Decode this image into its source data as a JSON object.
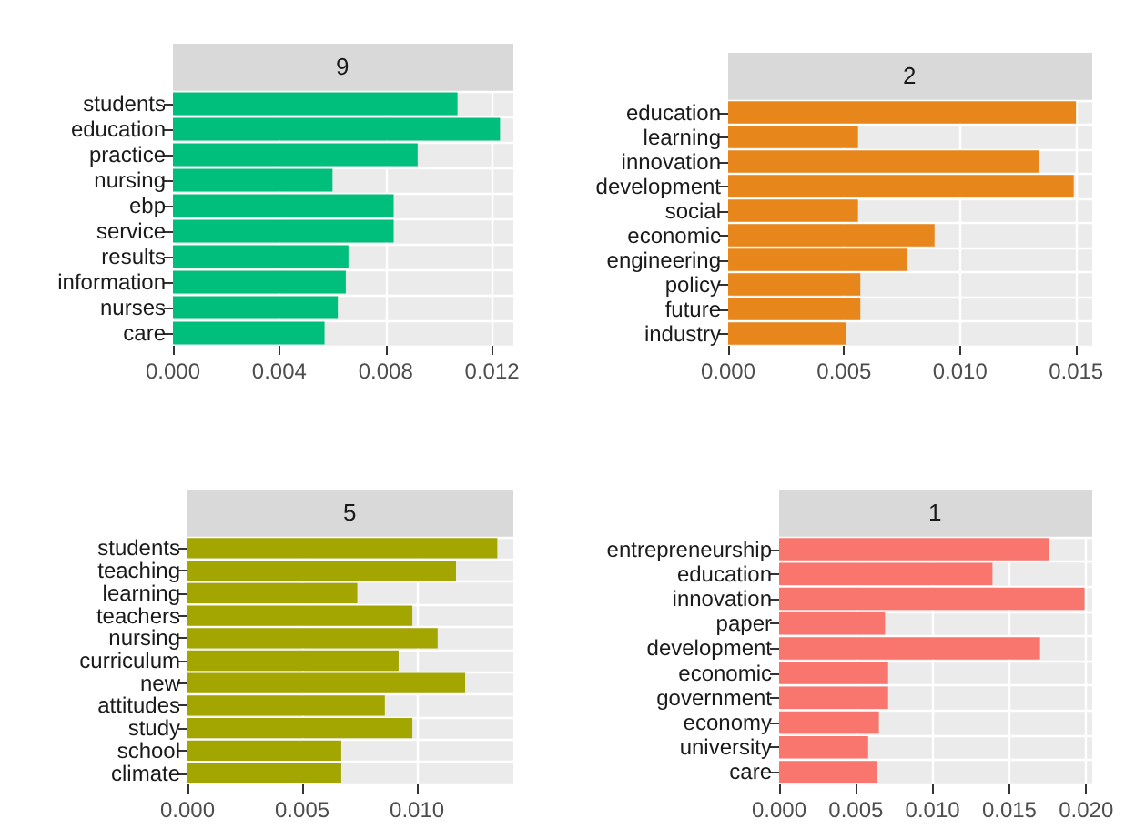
{
  "chart_data": [
    {
      "type": "bar",
      "orientation": "horizontal",
      "title": "9",
      "categories": [
        "students",
        "education",
        "practice",
        "nursing",
        "ebp",
        "service",
        "results",
        "information",
        "nurses",
        "care"
      ],
      "values": [
        0.0107,
        0.0123,
        0.0092,
        0.006,
        0.0083,
        0.0083,
        0.0066,
        0.0065,
        0.0062,
        0.0057
      ],
      "color": "#00bf7d",
      "xlim": [
        0,
        0.0128
      ],
      "xticks": [
        {
          "value": 0,
          "label": "0.000"
        },
        {
          "value": 0.004,
          "label": "0.004"
        },
        {
          "value": 0.008,
          "label": "0.008"
        },
        {
          "value": 0.012,
          "label": "0.012"
        }
      ],
      "grid": true
    },
    {
      "type": "bar",
      "orientation": "horizontal",
      "title": "2",
      "categories": [
        "education",
        "learning",
        "innovation",
        "development",
        "social",
        "economic",
        "engineering",
        "policy",
        "future",
        "industry"
      ],
      "values": [
        0.015,
        0.0056,
        0.0134,
        0.0149,
        0.0056,
        0.0089,
        0.0077,
        0.0057,
        0.0057,
        0.0051
      ],
      "color": "#e7861b",
      "xlim": [
        0,
        0.0157
      ],
      "xticks": [
        {
          "value": 0,
          "label": "0.000"
        },
        {
          "value": 0.005,
          "label": "0.005"
        },
        {
          "value": 0.01,
          "label": "0.010"
        },
        {
          "value": 0.015,
          "label": "0.015"
        }
      ],
      "grid": true
    },
    {
      "type": "bar",
      "orientation": "horizontal",
      "title": "5",
      "categories": [
        "students",
        "teaching",
        "learning",
        "teachers",
        "nursing",
        "curriculum",
        "new",
        "attitudes",
        "study",
        "school",
        "climate"
      ],
      "values": [
        0.0135,
        0.0117,
        0.0074,
        0.0098,
        0.0109,
        0.0092,
        0.0121,
        0.0086,
        0.0098,
        0.0067,
        0.0067
      ],
      "color": "#a3a500",
      "xlim": [
        0,
        0.0142
      ],
      "xticks": [
        {
          "value": 0,
          "label": "0.000"
        },
        {
          "value": 0.005,
          "label": "0.005"
        },
        {
          "value": 0.01,
          "label": "0.010"
        }
      ],
      "grid": true
    },
    {
      "type": "bar",
      "orientation": "horizontal",
      "title": "1",
      "categories": [
        "entrepreneurship",
        "education",
        "innovation",
        "paper",
        "development",
        "economic",
        "government",
        "economy",
        "university",
        "care"
      ],
      "values": [
        0.0176,
        0.0139,
        0.0199,
        0.0069,
        0.017,
        0.0071,
        0.0071,
        0.0065,
        0.0058,
        0.0064
      ],
      "color": "#f8766d",
      "xlim": [
        0,
        0.0204
      ],
      "xticks": [
        {
          "value": 0,
          "label": "0.000"
        },
        {
          "value": 0.005,
          "label": "0.005"
        },
        {
          "value": 0.01,
          "label": "0.010"
        },
        {
          "value": 0.015,
          "label": "0.015"
        },
        {
          "value": 0.02,
          "label": "0.020"
        }
      ],
      "grid": true
    }
  ]
}
